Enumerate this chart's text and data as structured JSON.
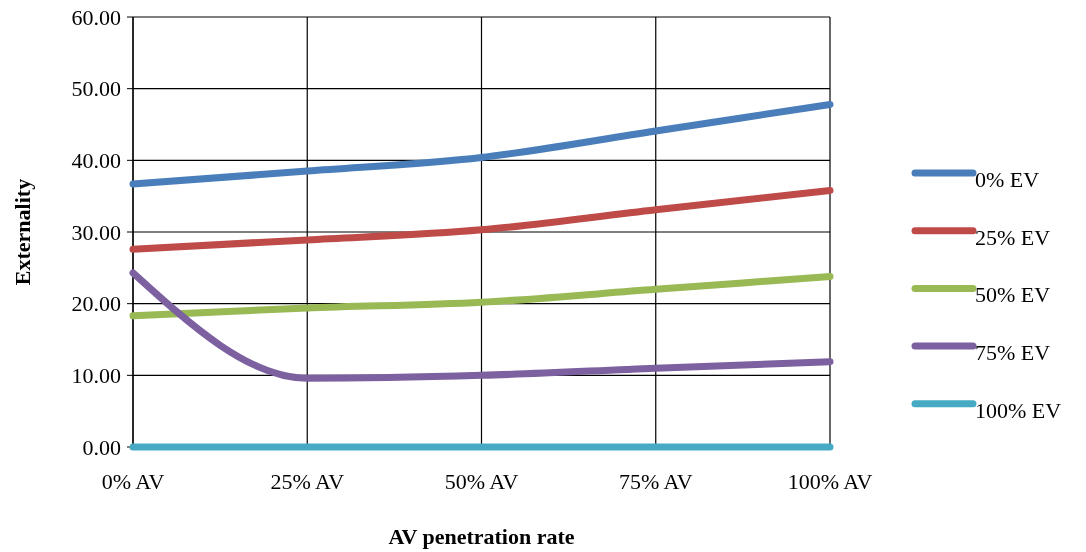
{
  "chart_data": {
    "type": "line",
    "xlabel": "AV penetration rate",
    "ylabel": "Externality",
    "categories": [
      "0% AV",
      "25% AV",
      "50% AV",
      "75% AV",
      "100% AV"
    ],
    "series": [
      {
        "name": "0% EV",
        "color": "#4a7ebb",
        "values": [
          36.7,
          38.5,
          40.4,
          44.1,
          47.8
        ]
      },
      {
        "name": "25% EV",
        "color": "#be4b48",
        "values": [
          27.6,
          28.9,
          30.3,
          33.1,
          35.8
        ]
      },
      {
        "name": "50% EV",
        "color": "#98b954",
        "values": [
          18.3,
          19.4,
          20.2,
          22.0,
          23.8
        ]
      },
      {
        "name": "75% EV",
        "color": "#7d60a0",
        "values": [
          24.3,
          9.6,
          10.0,
          11.0,
          11.9
        ]
      },
      {
        "name": "100% EV",
        "color": "#46aac5",
        "values": [
          0,
          0,
          0,
          0,
          0
        ]
      }
    ],
    "ylim": [
      0,
      60
    ],
    "yticks": [
      {
        "value": 0,
        "label": "0.00"
      },
      {
        "value": 10,
        "label": "10.00"
      },
      {
        "value": 20,
        "label": "20.00"
      },
      {
        "value": 30,
        "label": "30.00"
      },
      {
        "value": 40,
        "label": "40.00"
      },
      {
        "value": 50,
        "label": "50.00"
      },
      {
        "value": 60,
        "label": "60.00"
      }
    ],
    "grid": true,
    "legend": "right",
    "marker": "none",
    "line_style": "solid"
  }
}
